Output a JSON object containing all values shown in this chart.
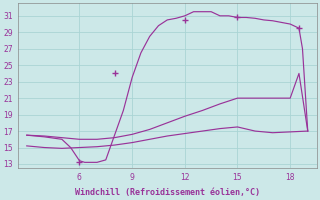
{
  "xlabel": "Windchill (Refroidissement éolien,°C)",
  "bg_color": "#cce8e8",
  "line_color": "#993399",
  "grid_color": "#aad4d4",
  "yticks": [
    13,
    15,
    17,
    19,
    21,
    23,
    25,
    27,
    29,
    31
  ],
  "xticks": [
    6,
    9,
    12,
    15,
    18
  ],
  "xlim": [
    2.5,
    19.5
  ],
  "ylim": [
    12.5,
    32.5
  ],
  "c1x": [
    3.0,
    4.0,
    5.0,
    6.0,
    7.0,
    8.0,
    9.0,
    10.0,
    11.0,
    12.0,
    13.0,
    14.0,
    15.0,
    16.0,
    17.0,
    18.0,
    19.0
  ],
  "c1y": [
    15.2,
    15.0,
    14.9,
    15.0,
    15.1,
    15.3,
    15.6,
    16.0,
    16.4,
    16.7,
    17.0,
    17.3,
    17.5,
    17.0,
    16.8,
    16.9,
    17.0
  ],
  "c2x": [
    3.0,
    4.0,
    5.0,
    6.0,
    7.0,
    8.0,
    9.0,
    10.0,
    11.0,
    12.0,
    13.0,
    14.0,
    15.0,
    16.0,
    17.0,
    18.0,
    18.5,
    19.0
  ],
  "c2y": [
    16.5,
    16.4,
    16.2,
    16.0,
    16.0,
    16.2,
    16.6,
    17.2,
    18.0,
    18.8,
    19.5,
    20.3,
    21.0,
    21.0,
    21.0,
    21.0,
    24.0,
    17.0
  ],
  "c3x": [
    3.0,
    4.0,
    5.0,
    5.5,
    6.0,
    6.3,
    6.5,
    7.0,
    7.5,
    8.0,
    8.5,
    9.0,
    9.5,
    10.0,
    10.5,
    11.0,
    11.5,
    12.0,
    12.5,
    13.0,
    13.5,
    14.0,
    14.5,
    15.0,
    15.5,
    16.0,
    16.5,
    17.0,
    17.5,
    18.0,
    18.5,
    18.7,
    19.0
  ],
  "c3y": [
    16.5,
    16.3,
    16.0,
    15.0,
    13.4,
    13.2,
    13.2,
    13.2,
    13.5,
    16.5,
    19.5,
    23.5,
    26.5,
    28.5,
    29.8,
    30.5,
    30.7,
    31.0,
    31.5,
    31.5,
    31.5,
    31.0,
    31.0,
    30.8,
    30.8,
    30.7,
    30.5,
    30.4,
    30.2,
    30.0,
    29.5,
    27.0,
    17.0
  ],
  "markers_x": [
    6.0,
    8.0,
    12.0,
    15.0,
    18.5
  ],
  "markers_y": [
    13.2,
    24.0,
    30.5,
    30.8,
    29.5
  ]
}
